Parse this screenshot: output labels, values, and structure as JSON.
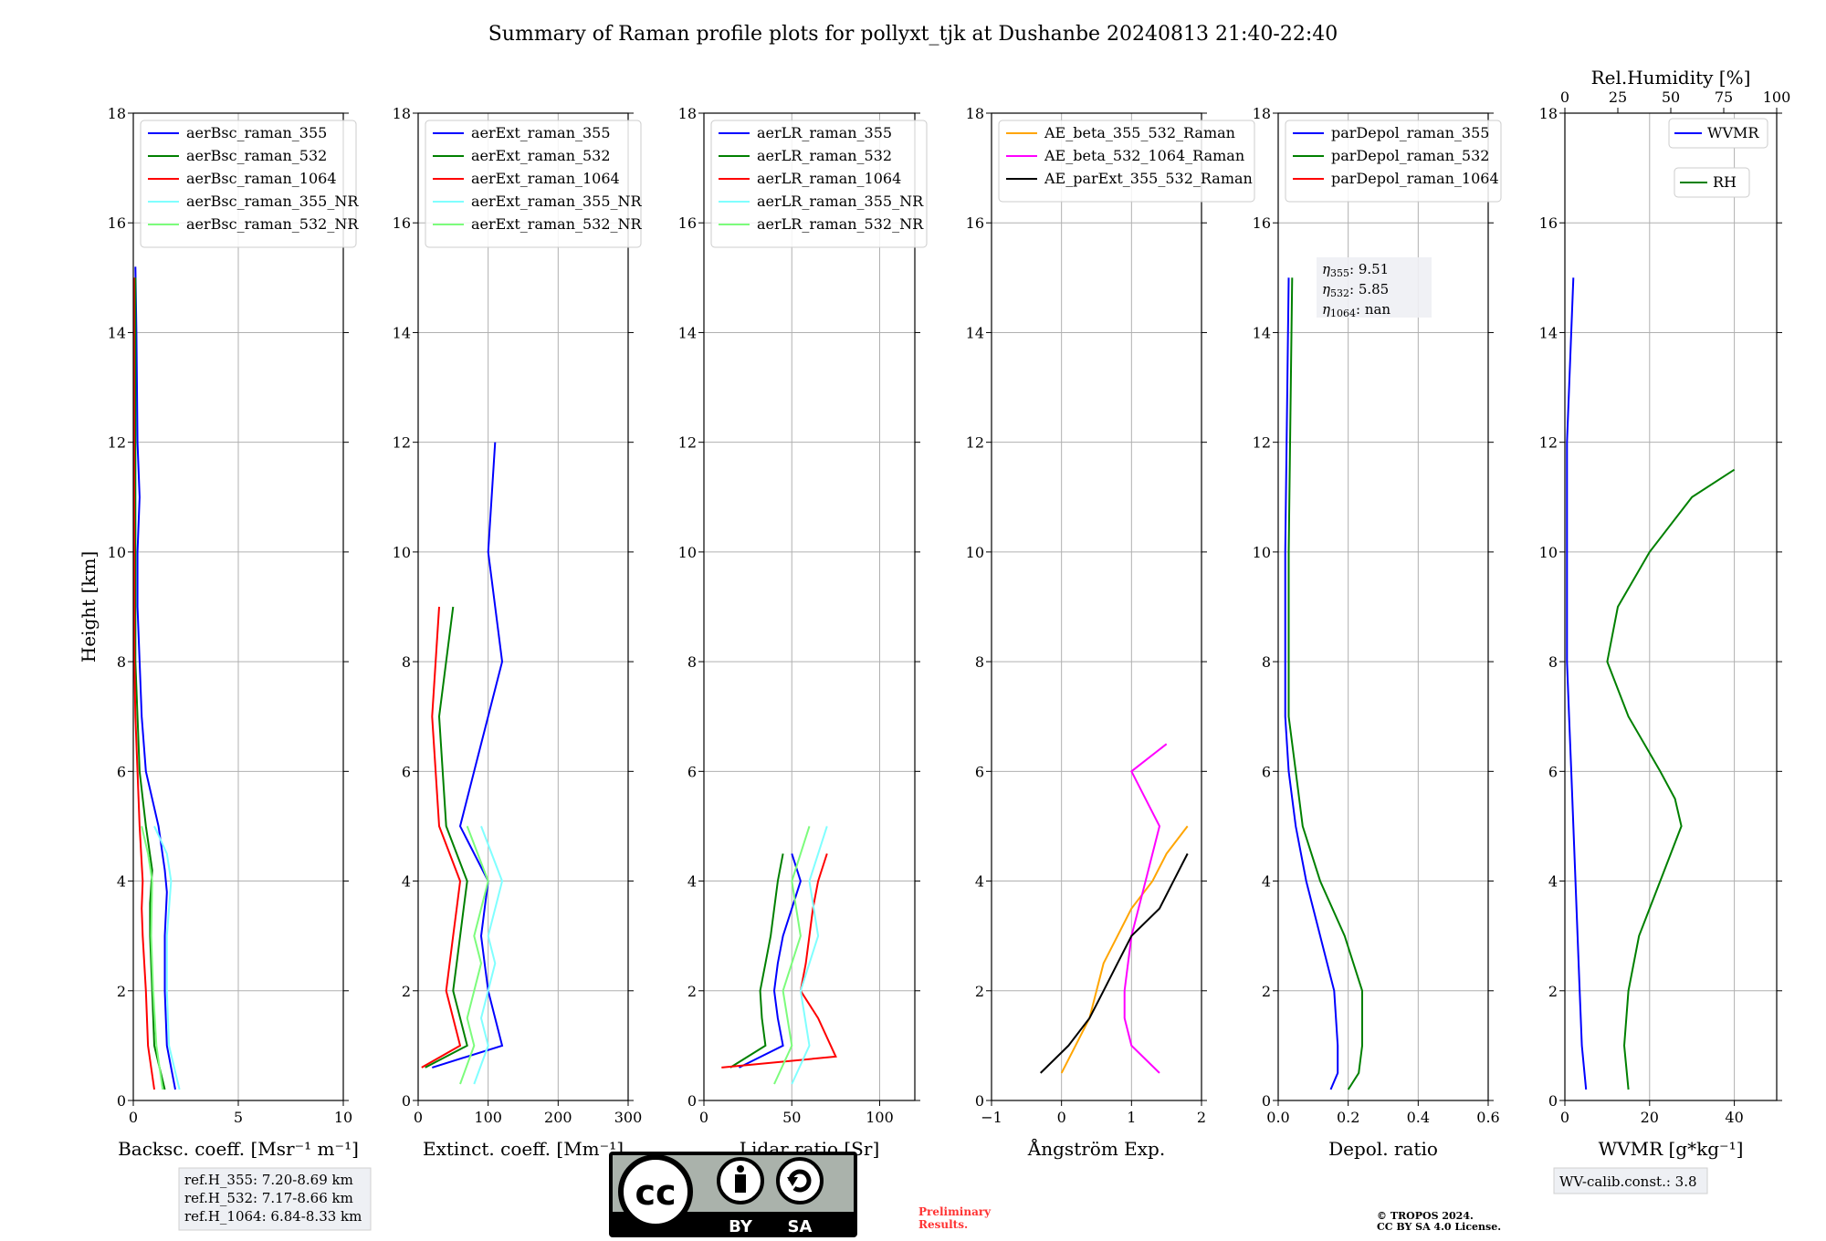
{
  "title": "Summary of Raman profile plots for pollyxt_tjk at Dushanbe 20240813 21:40-22:40",
  "colors": {
    "blue": "#0000ff",
    "green": "#008000",
    "red": "#ff0000",
    "cyan": "#80ffff",
    "lightgreen": "#7cfc7c",
    "orange": "#ffa500",
    "magenta": "#ff00ff",
    "black": "#000000"
  },
  "ylabel": "Height [km]",
  "ylim": [
    0,
    18
  ],
  "yticks": [
    "0",
    "2",
    "4",
    "6",
    "8",
    "10",
    "12",
    "14",
    "16",
    "18"
  ],
  "annotations": {
    "refh": [
      "ref.H_355: 7.20-8.69 km",
      "ref.H_532: 7.17-8.66 km",
      "ref.H_1064: 6.84-8.33 km"
    ],
    "wv_calib": "WV-calib.const.: 3.8",
    "preliminary": [
      "Preliminary",
      "Results."
    ],
    "copyright": [
      "© TROPOS 2024.",
      "CC BY SA 4.0 License."
    ],
    "cc_logo": {
      "by": "BY",
      "sa": "SA",
      "cc": "cc"
    }
  },
  "chart_data": [
    {
      "type": "line",
      "xlabel": "Backsc. coeff. [Msr⁻¹ m⁻¹]",
      "xlim": [
        0,
        10
      ],
      "xticks": [
        "0",
        "5",
        "10"
      ],
      "xtick_values": [
        0,
        5,
        10
      ],
      "series": [
        {
          "name": "aerBsc_raman_355",
          "color": "blue",
          "x": [
            2.0,
            1.6,
            1.5,
            1.5,
            1.6,
            1.5,
            1.2,
            0.6,
            0.4,
            0.3,
            0.2,
            0.2,
            0.3,
            0.2,
            0.15,
            0.1
          ],
          "y": [
            0.2,
            1.0,
            2.0,
            3.0,
            3.8,
            4.2,
            5.0,
            6.0,
            7.0,
            8.0,
            9.0,
            10.0,
            11.0,
            12.0,
            14.0,
            15.2
          ]
        },
        {
          "name": "aerBsc_raman_532",
          "color": "green",
          "x": [
            1.5,
            1.0,
            0.9,
            0.8,
            0.8,
            0.9,
            0.6,
            0.3,
            0.2,
            0.1,
            0.1,
            0.1
          ],
          "y": [
            0.2,
            1.0,
            2.0,
            3.0,
            3.6,
            4.2,
            5.0,
            6.0,
            7.0,
            8.0,
            10.0,
            15.0
          ]
        },
        {
          "name": "aerBsc_raman_1064",
          "color": "red",
          "x": [
            1.0,
            0.7,
            0.6,
            0.45,
            0.4,
            0.45,
            0.3,
            0.2,
            0.1,
            0.05,
            0.03
          ],
          "y": [
            0.2,
            1.0,
            2.0,
            3.0,
            3.5,
            4.0,
            5.0,
            6.0,
            7.0,
            8.0,
            15.0
          ]
        },
        {
          "name": "aerBsc_raman_355_NR",
          "color": "cyan",
          "x": [
            2.2,
            1.7,
            1.6,
            1.6,
            1.8,
            1.6,
            1.0
          ],
          "y": [
            0.2,
            1.0,
            2.0,
            3.0,
            4.0,
            4.5,
            5.0
          ]
        },
        {
          "name": "aerBsc_raman_532_NR",
          "color": "lightgreen",
          "x": [
            1.4,
            1.1,
            0.95,
            0.85,
            0.9,
            0.7,
            0.4
          ],
          "y": [
            0.2,
            1.0,
            2.0,
            3.0,
            4.0,
            4.5,
            5.0
          ]
        }
      ]
    },
    {
      "type": "line",
      "xlabel": "Extinct. coeff. [Mm⁻¹]",
      "xlim": [
        0,
        300
      ],
      "xticks": [
        "0",
        "100",
        "200",
        "300"
      ],
      "xtick_values": [
        0,
        100,
        200,
        300
      ],
      "series": [
        {
          "name": "aerExt_raman_355",
          "color": "blue",
          "x": [
            20,
            120,
            110,
            100,
            95,
            90,
            95,
            100,
            60,
            80,
            120,
            100,
            110
          ],
          "y": [
            0.6,
            1.0,
            1.5,
            2.0,
            2.5,
            3.0,
            3.5,
            4.0,
            5.0,
            6.0,
            8.0,
            10.0,
            12.0
          ]
        },
        {
          "name": "aerExt_raman_532",
          "color": "green",
          "x": [
            10,
            70,
            60,
            50,
            55,
            60,
            65,
            70,
            40,
            30,
            50
          ],
          "y": [
            0.6,
            1.0,
            1.5,
            2.0,
            2.5,
            3.0,
            3.5,
            4.0,
            5.0,
            7.0,
            9.0
          ]
        },
        {
          "name": "aerExt_raman_1064",
          "color": "red",
          "x": [
            5,
            60,
            50,
            40,
            45,
            50,
            55,
            60,
            30,
            20,
            30
          ],
          "y": [
            0.6,
            1.0,
            1.5,
            2.0,
            2.5,
            3.0,
            3.5,
            4.0,
            5.0,
            7.0,
            9.0
          ]
        },
        {
          "name": "aerExt_raman_355_NR",
          "color": "cyan",
          "x": [
            80,
            100,
            90,
            110,
            100,
            120,
            90
          ],
          "y": [
            0.3,
            1.0,
            1.5,
            2.5,
            3.0,
            4.0,
            5.0
          ]
        },
        {
          "name": "aerExt_raman_532_NR",
          "color": "lightgreen",
          "x": [
            60,
            80,
            70,
            90,
            80,
            100,
            70
          ],
          "y": [
            0.3,
            1.0,
            1.5,
            2.5,
            3.0,
            4.0,
            5.0
          ]
        }
      ]
    },
    {
      "type": "line",
      "xlabel": "Lidar ratio [Sr]",
      "xlim": [
        0,
        120
      ],
      "xticks": [
        "0",
        "50",
        "100"
      ],
      "xtick_values": [
        0,
        50,
        100
      ],
      "series": [
        {
          "name": "aerLR_raman_355",
          "color": "blue",
          "x": [
            20,
            45,
            42,
            40,
            42,
            45,
            50,
            55,
            50
          ],
          "y": [
            0.6,
            1.0,
            1.5,
            2.0,
            2.5,
            3.0,
            3.5,
            4.0,
            4.5
          ]
        },
        {
          "name": "aerLR_raman_532",
          "color": "green",
          "x": [
            15,
            35,
            33,
            32,
            35,
            38,
            40,
            42,
            45
          ],
          "y": [
            0.6,
            1.0,
            1.5,
            2.0,
            2.5,
            3.0,
            3.5,
            4.0,
            4.5
          ]
        },
        {
          "name": "aerLR_raman_1064",
          "color": "red",
          "x": [
            10,
            75,
            65,
            55,
            58,
            60,
            62,
            65,
            70
          ],
          "y": [
            0.6,
            0.8,
            1.5,
            2.0,
            2.5,
            3.0,
            3.5,
            4.0,
            4.5
          ]
        },
        {
          "name": "aerLR_raman_355_NR",
          "color": "cyan",
          "x": [
            50,
            60,
            55,
            65,
            60,
            70
          ],
          "y": [
            0.3,
            1.0,
            2.0,
            3.0,
            4.0,
            5.0
          ]
        },
        {
          "name": "aerLR_raman_532_NR",
          "color": "lightgreen",
          "x": [
            40,
            50,
            45,
            55,
            50,
            60
          ],
          "y": [
            0.3,
            1.0,
            2.0,
            3.0,
            4.0,
            5.0
          ]
        }
      ]
    },
    {
      "type": "line",
      "xlabel": "Ångström Exp.",
      "xlim": [
        -1,
        2
      ],
      "xticks": [
        "−1",
        "0",
        "1",
        "2"
      ],
      "xtick_values": [
        -1,
        0,
        1,
        2
      ],
      "series": [
        {
          "name": "AE_beta_355_532_Raman",
          "color": "orange",
          "x": [
            0.0,
            0.2,
            0.4,
            0.5,
            0.6,
            0.8,
            1.0,
            1.3,
            1.5,
            1.8
          ],
          "y": [
            0.5,
            1.0,
            1.5,
            2.0,
            2.5,
            3.0,
            3.5,
            4.0,
            4.5,
            5.0
          ]
        },
        {
          "name": "AE_beta_532_1064_Raman",
          "color": "magenta",
          "x": [
            1.4,
            1.0,
            0.9,
            0.9,
            0.95,
            1.0,
            1.2,
            1.4,
            1.0,
            1.5
          ],
          "y": [
            0.5,
            1.0,
            1.5,
            2.0,
            2.5,
            3.0,
            4.0,
            5.0,
            6.0,
            6.5
          ]
        },
        {
          "name": "AE_parExt_355_532_Raman",
          "color": "black",
          "x": [
            -0.3,
            0.1,
            0.4,
            0.6,
            0.8,
            1.0,
            1.4,
            1.6,
            1.8
          ],
          "y": [
            0.5,
            1.0,
            1.5,
            2.0,
            2.5,
            3.0,
            3.5,
            4.0,
            4.5
          ]
        }
      ]
    },
    {
      "type": "line",
      "xlabel": "Depol. ratio",
      "xlim": [
        0,
        0.6
      ],
      "xticks": [
        "0.0",
        "0.2",
        "0.4",
        "0.6"
      ],
      "xtick_values": [
        0,
        0.2,
        0.4,
        0.6
      ],
      "annotation": {
        "eta_355": ": 9.51",
        "eta_532": ": 5.85",
        "eta_1064": ": nan"
      },
      "series": [
        {
          "name": "parDepol_raman_355",
          "color": "blue",
          "x": [
            0.15,
            0.17,
            0.17,
            0.16,
            0.12,
            0.08,
            0.05,
            0.03,
            0.02,
            0.02,
            0.03
          ],
          "y": [
            0.2,
            0.5,
            1.0,
            2.0,
            3.0,
            4.0,
            5.0,
            6.0,
            7.0,
            10.0,
            15.0
          ]
        },
        {
          "name": "parDepol_raman_532",
          "color": "green",
          "x": [
            0.2,
            0.23,
            0.24,
            0.24,
            0.19,
            0.12,
            0.07,
            0.05,
            0.03,
            0.03,
            0.04
          ],
          "y": [
            0.2,
            0.5,
            1.0,
            2.0,
            3.0,
            4.0,
            5.0,
            6.0,
            7.0,
            10.0,
            15.0
          ]
        },
        {
          "name": "parDepol_raman_1064",
          "color": "red",
          "x": [],
          "y": []
        }
      ]
    },
    {
      "type": "line",
      "xlabel": "WVMR [g*kg⁻¹]",
      "xlim": [
        0,
        50
      ],
      "xticks": [
        "0",
        "20",
        "40"
      ],
      "xtick_values": [
        0,
        20,
        40
      ],
      "x2label": "Rel.Humidity [%]",
      "x2lim": [
        0,
        100
      ],
      "x2ticks": [
        "0",
        "25",
        "50",
        "75",
        "100"
      ],
      "x2tick_values": [
        0,
        25,
        50,
        75,
        100
      ],
      "series": [
        {
          "name": "WVMR",
          "color": "blue",
          "axis": "x",
          "x": [
            5,
            4,
            3.5,
            3,
            2.5,
            2,
            1.5,
            1,
            0.5,
            0.5,
            2
          ],
          "y": [
            0.2,
            1.0,
            2.0,
            3.0,
            4.0,
            5.0,
            6.0,
            7.0,
            8.0,
            12.0,
            15.0
          ]
        },
        {
          "name": "RH",
          "color": "green",
          "axis": "x2",
          "x": [
            30,
            28,
            30,
            35,
            45,
            55,
            52,
            45,
            30,
            20,
            25,
            40,
            60,
            80
          ],
          "y": [
            0.2,
            1.0,
            2.0,
            3.0,
            4.0,
            5.0,
            5.5,
            6.0,
            7.0,
            8.0,
            9.0,
            10.0,
            11.0,
            11.5
          ]
        }
      ]
    }
  ]
}
